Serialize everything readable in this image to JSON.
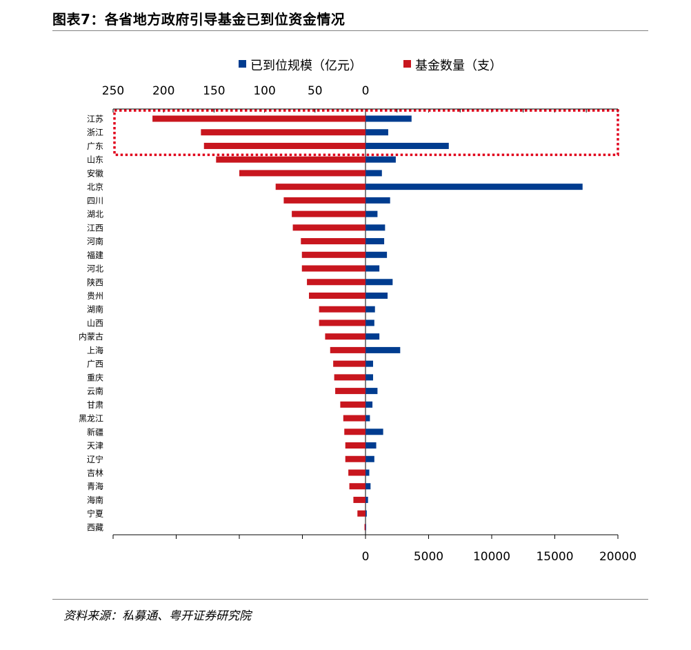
{
  "header": {
    "title": "图表7：各省地方政府引导基金已到位资金情况"
  },
  "footer": {
    "source": "资料来源：私募通、粤开证券研究院"
  },
  "chart_data": {
    "type": "bar",
    "orientation": "horizontal",
    "layout": "butterfly",
    "categories": [
      "江苏",
      "浙江",
      "广东",
      "山东",
      "安徽",
      "北京",
      "四川",
      "湖北",
      "江西",
      "河南",
      "福建",
      "河北",
      "陕西",
      "贵州",
      "湖南",
      "山西",
      "内蒙古",
      "上海",
      "广西",
      "重庆",
      "云南",
      "甘肃",
      "黑龙江",
      "新疆",
      "天津",
      "辽宁",
      "吉林",
      "青海",
      "海南",
      "宁夏",
      "西藏"
    ],
    "series": [
      {
        "name": "已到位规模（亿元）",
        "color": "#003c8f",
        "axis": "bottom",
        "direction": "right",
        "values": [
          3650,
          1800,
          6600,
          2400,
          1300,
          17200,
          1950,
          950,
          1550,
          1480,
          1700,
          1100,
          2150,
          1750,
          750,
          700,
          1100,
          2750,
          600,
          600,
          950,
          550,
          350,
          1400,
          850,
          700,
          300,
          400,
          200,
          100,
          50
        ]
      },
      {
        "name": "基金数量（支）",
        "color": "#c8161e",
        "axis": "top",
        "direction": "left",
        "values": [
          211,
          163,
          160,
          148,
          125,
          89,
          81,
          73,
          72,
          64,
          63,
          63,
          58,
          56,
          46,
          46,
          40,
          35,
          32,
          31,
          30,
          25,
          22,
          21,
          20,
          20,
          17,
          16,
          12,
          8,
          1
        ]
      }
    ],
    "top_axis": {
      "min": 0,
      "max": 250,
      "ticks": [
        "250",
        "200",
        "150",
        "100",
        "50",
        "0"
      ],
      "reversed": true
    },
    "bottom_axis": {
      "min": 0,
      "max": 20000,
      "ticks": [
        "0",
        "5000",
        "10000",
        "15000",
        "20000"
      ]
    },
    "highlight_box": {
      "categories": [
        "江苏",
        "浙江",
        "广东"
      ],
      "color": "#e0001b",
      "style": "dotted"
    },
    "legend_position": "top",
    "grid": false,
    "xlabel": "",
    "ylabel": ""
  }
}
